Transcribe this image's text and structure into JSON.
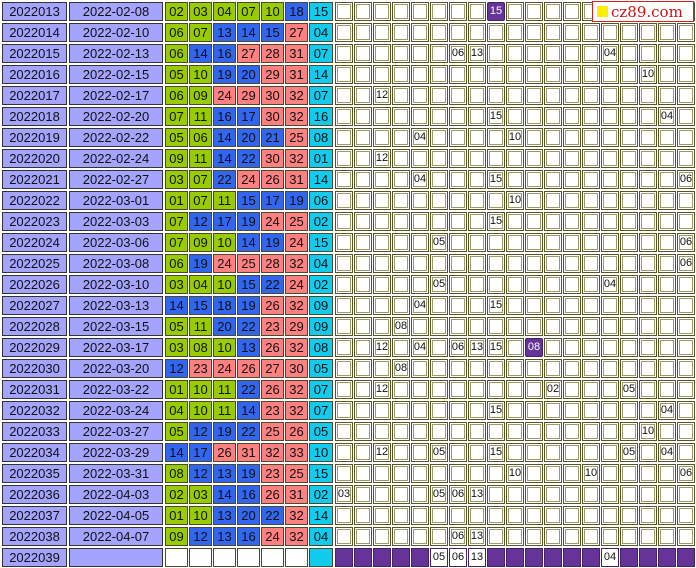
{
  "logo": {
    "text": "cz89.com"
  },
  "colors": {
    "low": "#99cc00",
    "mid": "#3366ee",
    "high": "#ff8080",
    "blue_ball": "#11ccee",
    "highlight": "#663399",
    "issue_bg": "#a4a4ff"
  },
  "rows": [
    {
      "issue": "2022013",
      "date": "2022-02-08",
      "reds": [
        "02",
        "03",
        "04",
        "07",
        "10",
        "18"
      ],
      "blue": "15",
      "marks": {
        "8": "15"
      },
      "highlight": [
        "8"
      ]
    },
    {
      "issue": "2022014",
      "date": "2022-02-10",
      "reds": [
        "06",
        "07",
        "13",
        "14",
        "15",
        "27"
      ],
      "blue": "04",
      "marks": {}
    },
    {
      "issue": "2022015",
      "date": "2022-02-13",
      "reds": [
        "06",
        "14",
        "16",
        "27",
        "28",
        "31"
      ],
      "blue": "07",
      "marks": {
        "6": "06",
        "7": "13",
        "14": "04"
      }
    },
    {
      "issue": "2022016",
      "date": "2022-02-15",
      "reds": [
        "05",
        "10",
        "19",
        "20",
        "29",
        "31"
      ],
      "blue": "14",
      "marks": {
        "16": "10"
      }
    },
    {
      "issue": "2022017",
      "date": "2022-02-17",
      "reds": [
        "06",
        "09",
        "24",
        "29",
        "30",
        "32"
      ],
      "blue": "07",
      "marks": {
        "2": "12"
      }
    },
    {
      "issue": "2022018",
      "date": "2022-02-20",
      "reds": [
        "07",
        "11",
        "16",
        "17",
        "30",
        "32"
      ],
      "blue": "16",
      "marks": {
        "8": "15",
        "17": "04"
      }
    },
    {
      "issue": "2022019",
      "date": "2022-02-22",
      "reds": [
        "05",
        "06",
        "14",
        "20",
        "21",
        "25"
      ],
      "blue": "08",
      "marks": {
        "4": "04",
        "9": "10"
      }
    },
    {
      "issue": "2022020",
      "date": "2022-02-24",
      "reds": [
        "09",
        "11",
        "14",
        "22",
        "30",
        "32"
      ],
      "blue": "01",
      "marks": {
        "2": "12"
      }
    },
    {
      "issue": "2022021",
      "date": "2022-02-27",
      "reds": [
        "03",
        "07",
        "22",
        "24",
        "26",
        "31"
      ],
      "blue": "14",
      "marks": {
        "4": "04",
        "8": "15",
        "18": "06"
      }
    },
    {
      "issue": "2022022",
      "date": "2022-03-01",
      "reds": [
        "01",
        "07",
        "11",
        "15",
        "17",
        "19"
      ],
      "blue": "06",
      "marks": {
        "9": "10"
      }
    },
    {
      "issue": "2022023",
      "date": "2022-03-03",
      "reds": [
        "07",
        "12",
        "17",
        "19",
        "24",
        "25"
      ],
      "blue": "02",
      "marks": {
        "8": "15"
      }
    },
    {
      "issue": "2022024",
      "date": "2022-03-06",
      "reds": [
        "07",
        "09",
        "10",
        "14",
        "19",
        "24"
      ],
      "blue": "15",
      "marks": {
        "5": "05",
        "18": "06"
      }
    },
    {
      "issue": "2022025",
      "date": "2022-03-08",
      "reds": [
        "06",
        "19",
        "24",
        "25",
        "28",
        "32"
      ],
      "blue": "04",
      "marks": {
        "18": "06"
      }
    },
    {
      "issue": "2022026",
      "date": "2022-03-10",
      "reds": [
        "03",
        "04",
        "10",
        "15",
        "22",
        "24"
      ],
      "blue": "02",
      "marks": {
        "5": "05",
        "14": "04"
      }
    },
    {
      "issue": "2022027",
      "date": "2022-03-13",
      "reds": [
        "14",
        "15",
        "18",
        "19",
        "26",
        "32"
      ],
      "blue": "09",
      "marks": {
        "4": "04",
        "8": "15"
      }
    },
    {
      "issue": "2022028",
      "date": "2022-03-15",
      "reds": [
        "05",
        "11",
        "20",
        "22",
        "23",
        "29"
      ],
      "blue": "09",
      "marks": {
        "3": "08"
      }
    },
    {
      "issue": "2022029",
      "date": "2022-03-17",
      "reds": [
        "03",
        "08",
        "10",
        "13",
        "26",
        "32"
      ],
      "blue": "08",
      "marks": {
        "2": "12",
        "4": "04",
        "6": "06",
        "7": "13",
        "8": "15",
        "10": "08"
      },
      "highlight": [
        "10"
      ]
    },
    {
      "issue": "2022030",
      "date": "2022-03-20",
      "reds": [
        "12",
        "23",
        "24",
        "26",
        "27",
        "30"
      ],
      "blue": "05",
      "marks": {
        "3": "08"
      }
    },
    {
      "issue": "2022031",
      "date": "2022-03-22",
      "reds": [
        "01",
        "10",
        "11",
        "22",
        "26",
        "32"
      ],
      "blue": "07",
      "marks": {
        "2": "12",
        "11": "02",
        "15": "05"
      }
    },
    {
      "issue": "2022032",
      "date": "2022-03-24",
      "reds": [
        "04",
        "10",
        "11",
        "14",
        "23",
        "32"
      ],
      "blue": "07",
      "marks": {
        "8": "15",
        "17": "04"
      }
    },
    {
      "issue": "2022033",
      "date": "2022-03-27",
      "reds": [
        "05",
        "12",
        "19",
        "22",
        "25",
        "26"
      ],
      "blue": "05",
      "marks": {
        "16": "10"
      }
    },
    {
      "issue": "2022034",
      "date": "2022-03-29",
      "reds": [
        "14",
        "17",
        "26",
        "31",
        "32",
        "33"
      ],
      "blue": "10",
      "marks": {
        "2": "12",
        "5": "05",
        "8": "15",
        "15": "05",
        "17": "04"
      }
    },
    {
      "issue": "2022035",
      "date": "2022-03-31",
      "reds": [
        "08",
        "12",
        "13",
        "19",
        "23",
        "25"
      ],
      "blue": "15",
      "marks": {
        "9": "10",
        "13": "10",
        "18": "06"
      }
    },
    {
      "issue": "2022036",
      "date": "2022-04-03",
      "reds": [
        "02",
        "03",
        "14",
        "16",
        "26",
        "31"
      ],
      "blue": "02",
      "marks": {
        "0": "03",
        "5": "05",
        "6": "06",
        "7": "13"
      }
    },
    {
      "issue": "2022037",
      "date": "2022-04-05",
      "reds": [
        "01",
        "10",
        "13",
        "20",
        "22",
        "32"
      ],
      "blue": "14",
      "marks": {}
    },
    {
      "issue": "2022038",
      "date": "2022-04-07",
      "reds": [
        "09",
        "12",
        "13",
        "16",
        "24",
        "32"
      ],
      "blue": "04",
      "marks": {
        "6": "06",
        "7": "13"
      }
    },
    {
      "issue": "2022039",
      "date": "",
      "reds": [
        "",
        "",
        "",
        "",
        "",
        ""
      ],
      "blue": "",
      "marks": {
        "5": "05",
        "6": "06",
        "7": "13",
        "14": "04"
      },
      "prediction": true
    }
  ]
}
